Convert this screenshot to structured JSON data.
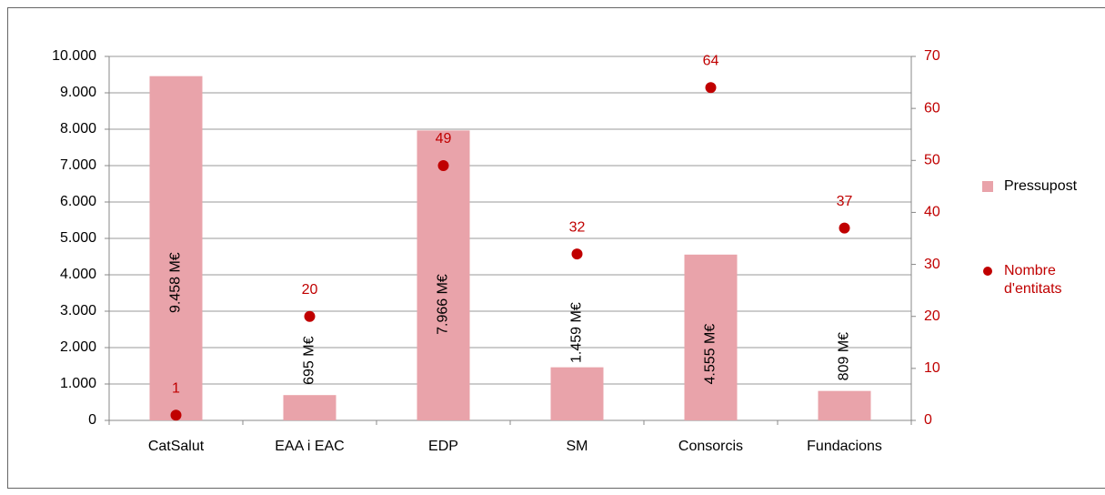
{
  "chart_data": {
    "type": "bar",
    "categories": [
      "CatSalut",
      "EAA i EAC",
      "EDP",
      "SM",
      "Consorcis",
      "Fundacions"
    ],
    "series": [
      {
        "name": "Pressupost",
        "type": "bar",
        "color": "#e9a3aa",
        "values": [
          9458,
          695,
          7966,
          1459,
          4555,
          809
        ],
        "value_labels": [
          "9.458 M€",
          "695 M€",
          "7.966 M€",
          "1.459 M€",
          "4.555 M€",
          "809 M€"
        ]
      },
      {
        "name": "Nombre d'entitats",
        "type": "scatter",
        "axis": "y2",
        "color": "#c00000",
        "values": [
          1,
          20,
          49,
          32,
          64,
          37
        ]
      }
    ],
    "ylim": [
      0,
      10000
    ],
    "yticks": [
      0,
      {
        "value": 1000,
        "label": "1.000"
      },
      {
        "value": 2000,
        "label": "2.000"
      },
      {
        "value": 3000,
        "label": "3.000"
      },
      {
        "value": 4000,
        "label": "4.000"
      },
      {
        "value": 5000,
        "label": "5.000"
      },
      {
        "value": 6000,
        "label": "6.000"
      },
      {
        "value": 7000,
        "label": "7.000"
      },
      {
        "value": 8000,
        "label": "8.000"
      },
      {
        "value": 9000,
        "label": "9.000"
      },
      {
        "value": 10000,
        "label": "10.000"
      }
    ],
    "y2lim": [
      0,
      70
    ],
    "y2ticks": [
      0,
      10,
      20,
      30,
      40,
      50,
      60,
      70
    ],
    "y2color": "#c00000",
    "grid": true
  }
}
